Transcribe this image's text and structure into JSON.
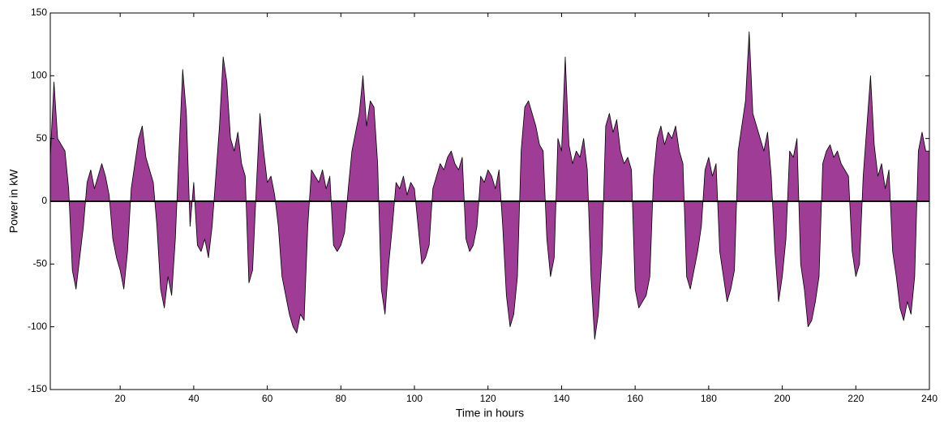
{
  "chart_data": {
    "type": "area",
    "x_label": "Time in hours",
    "y_label": "Power in kW",
    "xlim": [
      1,
      240
    ],
    "ylim": [
      -150,
      150
    ],
    "xticks": [
      20,
      40,
      60,
      80,
      100,
      120,
      140,
      160,
      180,
      200,
      220,
      240
    ],
    "yticks": [
      -150,
      -100,
      -50,
      0,
      50,
      100,
      150
    ],
    "series": [
      {
        "color": "#9e3c96",
        "x": [
          1,
          2,
          3,
          4,
          5,
          6,
          7,
          8,
          9,
          10,
          11,
          12,
          13,
          14,
          15,
          16,
          17,
          18,
          19,
          20,
          21,
          22,
          23,
          24,
          25,
          26,
          27,
          28,
          29,
          30,
          31,
          32,
          33,
          34,
          35,
          36,
          37,
          38,
          39,
          40,
          41,
          42,
          43,
          44,
          45,
          46,
          47,
          48,
          49,
          50,
          51,
          52,
          53,
          54,
          55,
          56,
          57,
          58,
          59,
          60,
          61,
          62,
          63,
          64,
          65,
          66,
          67,
          68,
          69,
          70,
          71,
          72,
          73,
          74,
          75,
          76,
          77,
          78,
          79,
          80,
          81,
          82,
          83,
          84,
          85,
          86,
          87,
          88,
          89,
          90,
          91,
          92,
          93,
          94,
          95,
          96,
          97,
          98,
          99,
          100,
          101,
          102,
          103,
          104,
          105,
          106,
          107,
          108,
          109,
          110,
          111,
          112,
          113,
          114,
          115,
          116,
          117,
          118,
          119,
          120,
          121,
          122,
          123,
          124,
          125,
          126,
          127,
          128,
          129,
          130,
          131,
          132,
          133,
          134,
          135,
          136,
          137,
          138,
          139,
          140,
          141,
          142,
          143,
          144,
          145,
          146,
          147,
          148,
          149,
          150,
          151,
          152,
          153,
          154,
          155,
          156,
          157,
          158,
          159,
          160,
          161,
          162,
          163,
          164,
          165,
          166,
          167,
          168,
          169,
          170,
          171,
          172,
          173,
          174,
          175,
          176,
          177,
          178,
          179,
          180,
          181,
          182,
          183,
          184,
          185,
          186,
          187,
          188,
          189,
          190,
          191,
          192,
          193,
          194,
          195,
          196,
          197,
          198,
          199,
          200,
          201,
          202,
          203,
          204,
          205,
          206,
          207,
          208,
          209,
          210,
          211,
          212,
          213,
          214,
          215,
          216,
          217,
          218,
          219,
          220,
          221,
          222,
          223,
          224,
          225,
          226,
          227,
          228,
          229,
          230,
          231,
          232,
          233,
          234,
          235,
          236,
          237,
          238,
          239,
          240
        ],
        "values": [
          35,
          95,
          50,
          45,
          40,
          10,
          -55,
          -70,
          -45,
          -20,
          15,
          25,
          10,
          20,
          30,
          20,
          5,
          -30,
          -45,
          -55,
          -70,
          -40,
          10,
          30,
          50,
          60,
          35,
          25,
          15,
          -20,
          -70,
          -85,
          -60,
          -75,
          -30,
          40,
          105,
          70,
          -20,
          15,
          -35,
          -40,
          -30,
          -45,
          -20,
          20,
          60,
          115,
          95,
          50,
          40,
          55,
          30,
          20,
          -65,
          -55,
          10,
          70,
          40,
          15,
          20,
          5,
          -20,
          -60,
          -75,
          -90,
          -100,
          -105,
          -90,
          -95,
          -20,
          25,
          20,
          15,
          25,
          10,
          20,
          -35,
          -40,
          -35,
          -25,
          10,
          40,
          55,
          70,
          100,
          60,
          80,
          75,
          30,
          -70,
          -90,
          -50,
          -20,
          15,
          10,
          20,
          5,
          15,
          10,
          -20,
          -50,
          -45,
          -35,
          10,
          20,
          30,
          25,
          35,
          40,
          30,
          25,
          35,
          -30,
          -40,
          -35,
          -20,
          20,
          15,
          25,
          20,
          10,
          25,
          -20,
          -75,
          -100,
          -90,
          -60,
          40,
          75,
          80,
          70,
          60,
          45,
          40,
          -30,
          -60,
          -45,
          50,
          40,
          115,
          45,
          30,
          40,
          35,
          50,
          25,
          -60,
          -110,
          -90,
          -40,
          60,
          70,
          55,
          65,
          40,
          30,
          35,
          25,
          -70,
          -85,
          -80,
          -75,
          -60,
          20,
          50,
          60,
          45,
          55,
          50,
          60,
          40,
          30,
          -60,
          -70,
          -55,
          -40,
          -20,
          25,
          35,
          20,
          30,
          -40,
          -60,
          -80,
          -70,
          -55,
          40,
          60,
          80,
          135,
          70,
          60,
          50,
          40,
          55,
          20,
          -40,
          -80,
          -60,
          -30,
          40,
          35,
          50,
          -50,
          -70,
          -100,
          -95,
          -80,
          -60,
          30,
          40,
          45,
          35,
          40,
          30,
          25,
          20,
          -40,
          -60,
          -50,
          20,
          60,
          100,
          45,
          20,
          30,
          10,
          25,
          -40,
          -60,
          -85,
          -95,
          -80,
          -90,
          -60,
          40,
          55,
          40,
          40
        ]
      }
    ]
  }
}
